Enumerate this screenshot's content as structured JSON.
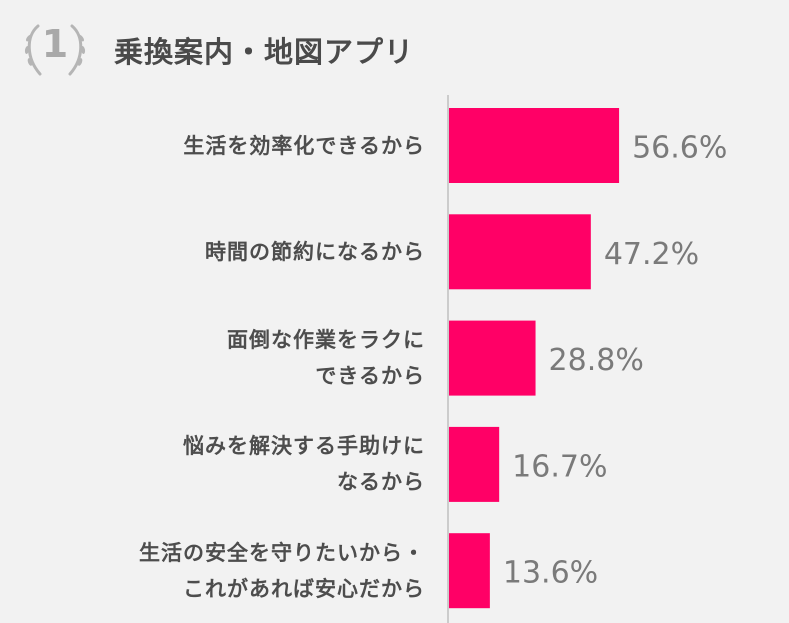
{
  "header": {
    "rank": "1",
    "title": "乗換案内・地図アプリ"
  },
  "chart_data": {
    "type": "bar",
    "orientation": "horizontal",
    "categories": [
      [
        "生活を効率化できるから"
      ],
      [
        "時間の節約になるから"
      ],
      [
        "面倒な作業をラクに",
        "できるから"
      ],
      [
        "悩みを解決する手助けに",
        "なるから"
      ],
      [
        "生活の安全を守りたいから・",
        "これがあれば安心だから"
      ]
    ],
    "values": [
      56.6,
      47.2,
      28.8,
      16.7,
      13.6
    ],
    "value_labels": [
      "56.6%",
      "47.2%",
      "28.8%",
      "16.7%",
      "13.6%"
    ],
    "xlim": [
      0,
      100
    ],
    "grid": false,
    "legend": "none",
    "bar_color": "#ff0066",
    "axis_color": "#cccccc",
    "value_label_color": "#7a7a7a"
  }
}
